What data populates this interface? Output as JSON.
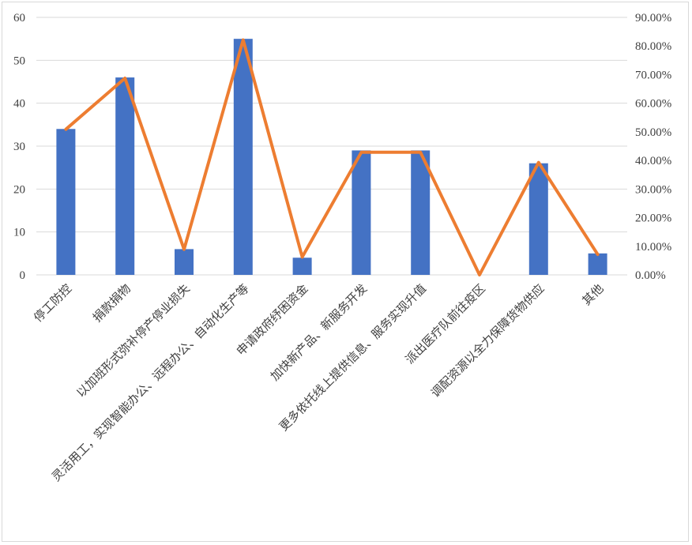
{
  "chart_data": {
    "type": "bar",
    "categories": [
      "停工防控",
      "捐款捐物",
      "以加班形式弥补停产停业损失",
      "灵活用工，实现智能办公、远程办公、自动化生产等",
      "申请政府纾困资金",
      "加快新产品、新服务开发",
      "更多依托线上提供信息、服务实现升值",
      "派出医疗队前往疫区",
      "调配资源以全力保障货物供应",
      "其他"
    ],
    "series": [
      {
        "values": [
          34,
          46,
          6,
          55,
          4,
          29,
          29,
          0,
          26,
          5
        ],
        "axis": "left",
        "render": "bar",
        "color": "#4472C4"
      },
      {
        "values": [
          0.5088,
          0.6875,
          0.0893,
          0.8214,
          0.0625,
          0.4286,
          0.4286,
          0.0,
          0.3929,
          0.0714
        ],
        "axis": "right",
        "render": "line",
        "color": "#ED7D31"
      }
    ],
    "left_axis": {
      "ylim": [
        0,
        60
      ],
      "ticks": [
        "0",
        "10",
        "20",
        "30",
        "40",
        "50",
        "60"
      ]
    },
    "right_axis": {
      "ylim": [
        0,
        0.9
      ],
      "ticks": [
        "0.00%",
        "10.00%",
        "20.00%",
        "30.00%",
        "40.00%",
        "50.00%",
        "60.00%",
        "70.00%",
        "80.00%",
        "90.00%"
      ]
    },
    "grid": true,
    "legend": "none",
    "title": "",
    "xlabel": "",
    "ylabel": ""
  }
}
